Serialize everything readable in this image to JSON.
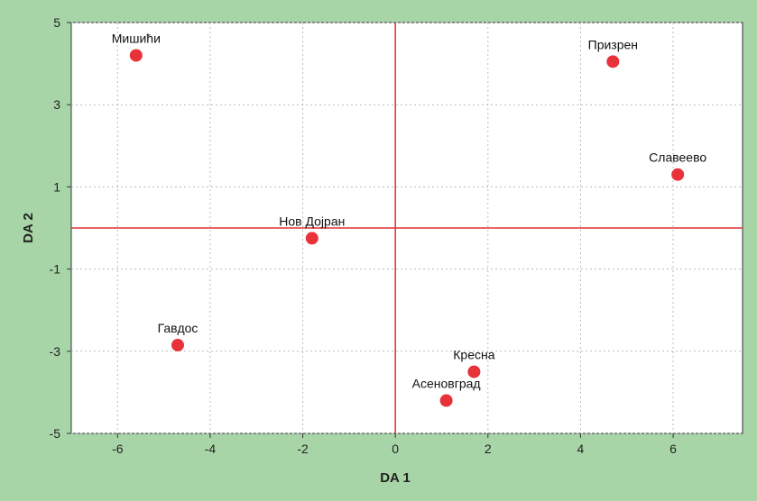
{
  "chart_data": {
    "type": "scatter",
    "title": "",
    "xlabel": "DA 1",
    "ylabel": "DA 2",
    "xlim": [
      -7,
      7.5
    ],
    "ylim": [
      -5,
      5
    ],
    "x_ticks": [
      -6,
      -4,
      -2,
      0,
      2,
      4,
      6
    ],
    "y_ticks": [
      5,
      3,
      1,
      -1,
      -3,
      -5
    ],
    "grid": true,
    "reference_lines": {
      "x": 0,
      "y": 0,
      "color": "#e03030"
    },
    "point_color": "#e8323a",
    "points": [
      {
        "label": "Мишићи",
        "x": -5.6,
        "y": 4.2
      },
      {
        "label": "Призрен",
        "x": 4.7,
        "y": 4.05
      },
      {
        "label": "Славеево",
        "x": 6.1,
        "y": 1.3
      },
      {
        "label": "Нов Дојран",
        "x": -1.8,
        "y": -0.25
      },
      {
        "label": "Гавдос",
        "x": -4.7,
        "y": -2.85
      },
      {
        "label": "Кресна",
        "x": 1.7,
        "y": -3.5
      },
      {
        "label": "Асеновград",
        "x": 1.1,
        "y": -4.2
      }
    ]
  }
}
